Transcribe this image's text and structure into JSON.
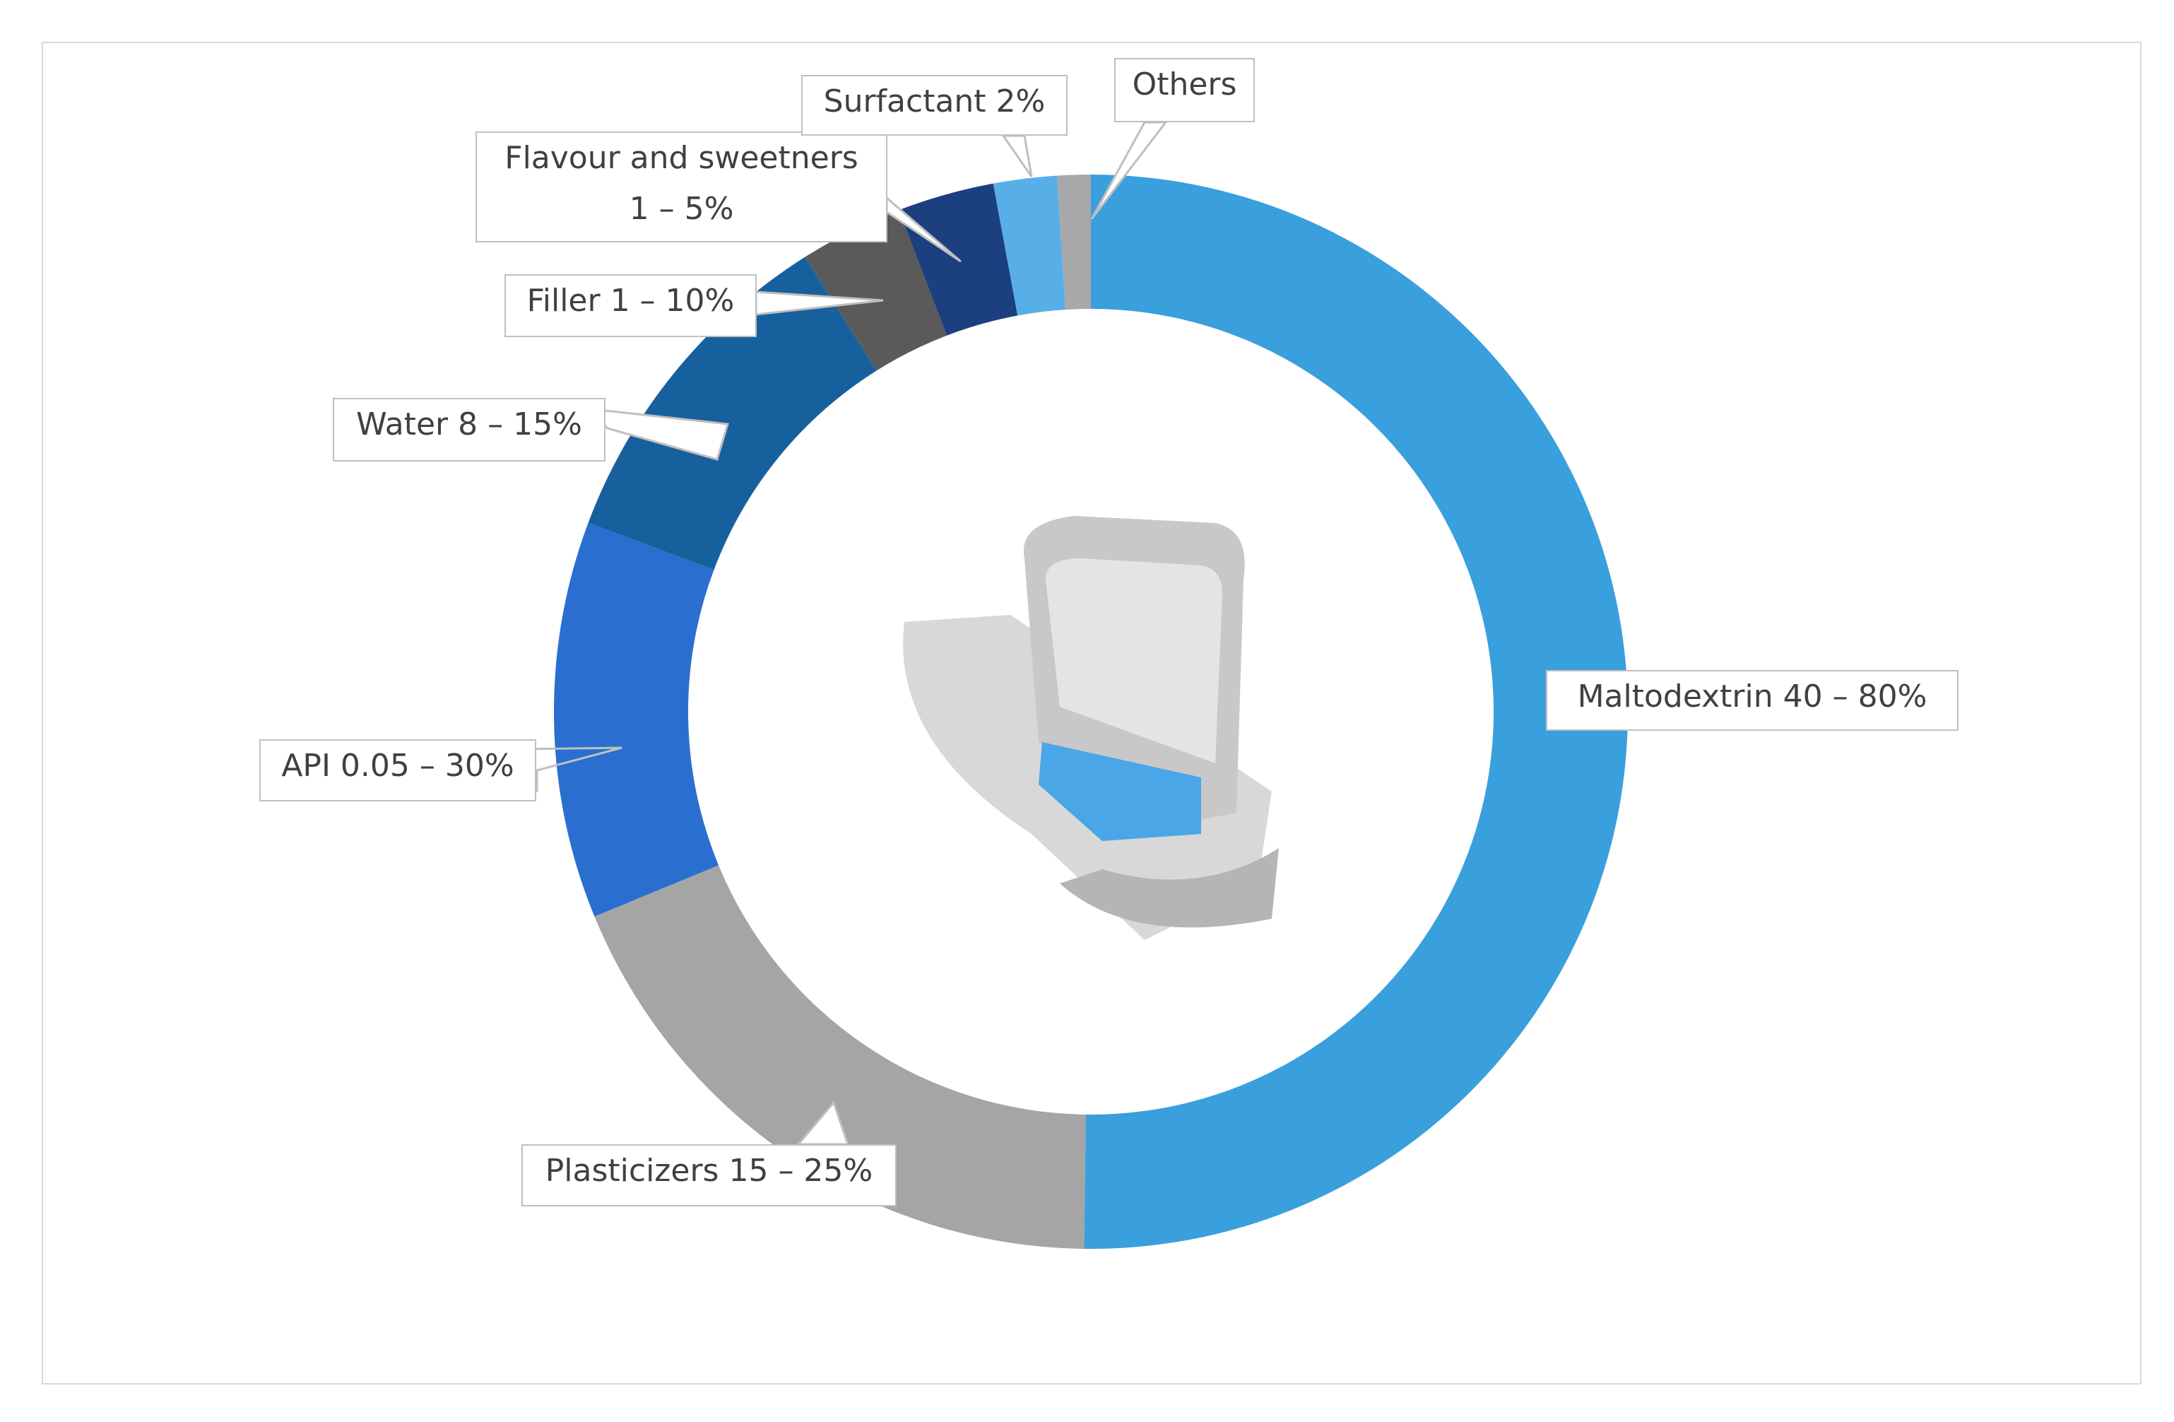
{
  "chart_data": {
    "type": "donut",
    "categories": [
      "Maltodextrin 40 – 80%",
      "Plasticizers 15 – 25%",
      "API 0.05 – 30%",
      "Water 8 – 15%",
      "Filler 1 – 10%",
      "Flavour and sweetners\n1 – 5%",
      "Surfactant 2%",
      "Others"
    ],
    "values": [
      50,
      18.5,
      11.9,
      10.3,
      3.1,
      2.9,
      1.9,
      1
    ],
    "colors": [
      "#3a9fdd",
      "#a5a5a5",
      "#2a6fd0",
      "#17609e",
      "#5a5a5a",
      "#1c3f80",
      "#58afe8",
      "#a8a8a8"
    ]
  }
}
